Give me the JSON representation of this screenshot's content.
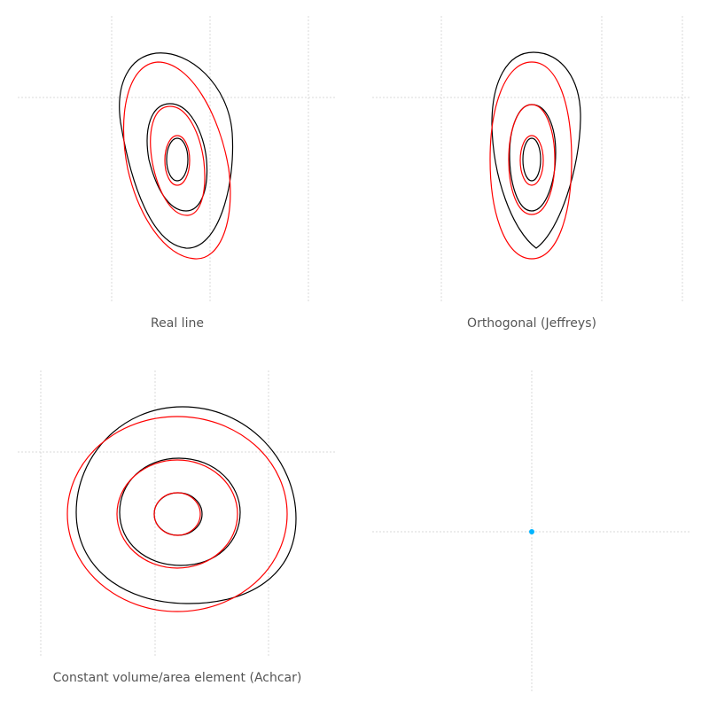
{
  "colors": {
    "series_a": "#000000",
    "series_b": "#ff0000",
    "point": "#00b4ff",
    "grid": "#d8d8d8",
    "caption": "#555555"
  },
  "chart_data": [
    {
      "type": "contour",
      "title": "Real line",
      "grid": true,
      "series": [
        {
          "color": "#000000",
          "levels": 3
        },
        {
          "color": "#ff0000",
          "levels": 3
        }
      ]
    },
    {
      "type": "contour",
      "title": "Orthogonal (Jeffreys)",
      "grid": true,
      "series": [
        {
          "color": "#000000",
          "levels": 3
        },
        {
          "color": "#ff0000",
          "levels": 3
        }
      ]
    },
    {
      "type": "contour",
      "title": "Constant volume/area element (Achcar)",
      "grid": true,
      "series": [
        {
          "color": "#000000",
          "levels": 3
        },
        {
          "color": "#ff0000",
          "levels": 3
        }
      ]
    },
    {
      "type": "scatter",
      "title": "",
      "grid": true,
      "points": [
        {
          "x": 0,
          "y": 0
        }
      ]
    }
  ]
}
